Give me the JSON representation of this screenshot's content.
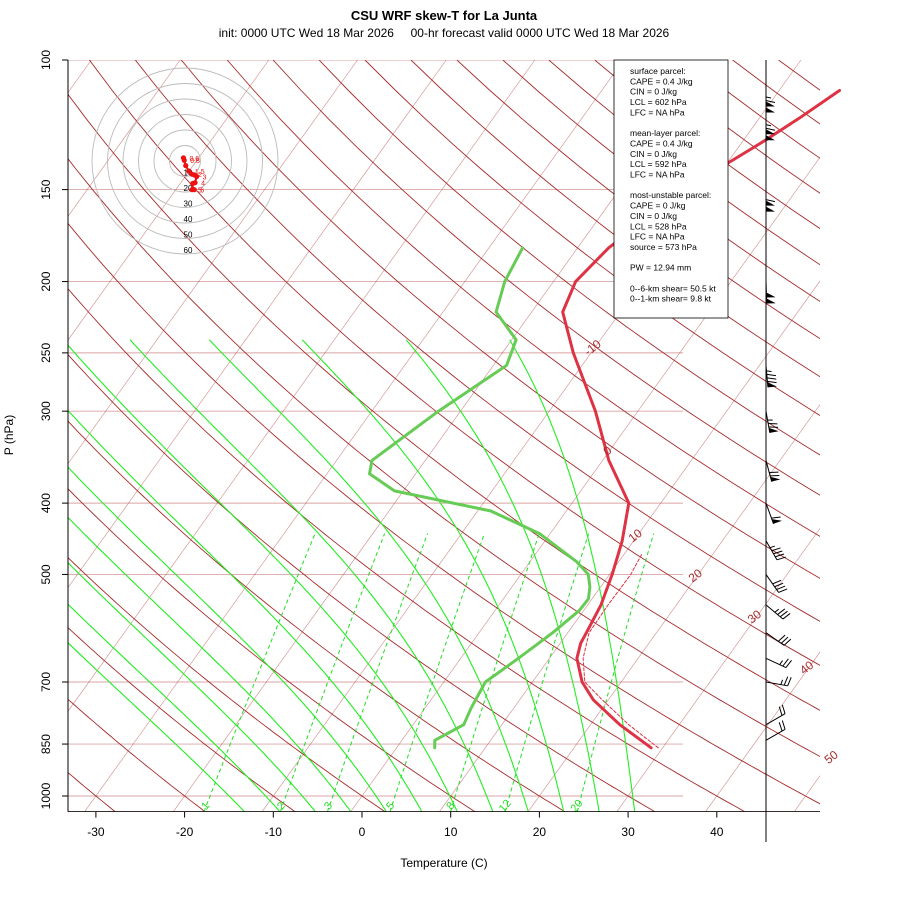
{
  "colors": {
    "isotherm": "#a62b2b",
    "dry_adiabat": "#a62b2b",
    "moist_adiabat": "#22ee22",
    "mixing_ratio": "#22dd22",
    "isobar": "#d9a4a4",
    "temperature": "#dd3344",
    "dewpoint": "#66cc55",
    "hodograph": "#ee1111",
    "wind_barb": "#000000"
  },
  "chart_data": {
    "type": "skew-t",
    "title": "CSU WRF skew-T for La Junta",
    "subtitle": "init: 0000 UTC Wed 18 Mar 2026     00-hr forecast valid 0000 UTC Wed 18 Mar 2026",
    "xlabel": "Temperature (C)",
    "ylabel": "P (hPa)",
    "xlim": [
      -33,
      52
    ],
    "ylim": [
      1050,
      100
    ],
    "log_pressure": true,
    "x_ticks": [
      -30,
      -20,
      -10,
      0,
      10,
      20,
      30,
      40
    ],
    "y_ticks": [
      1000,
      850,
      700,
      500,
      400,
      300,
      250,
      200,
      150,
      100
    ],
    "isotherm_labels": [
      -10,
      0,
      10,
      20,
      30,
      40,
      50
    ],
    "mixing_ratio_labels": [
      "1",
      "2",
      "3",
      "5",
      "8",
      "12",
      "20"
    ],
    "series": [
      {
        "key": "temperature",
        "points": [
          [
            860,
            28.7
          ],
          [
            800,
            23.3
          ],
          [
            740,
            18.3
          ],
          [
            700,
            15.6
          ],
          [
            650,
            13.1
          ],
          [
            620,
            12.3
          ],
          [
            600,
            12.1
          ],
          [
            550,
            11.5
          ],
          [
            500,
            10.3
          ],
          [
            450,
            8.7
          ],
          [
            400,
            6.4
          ],
          [
            350,
            0.7
          ],
          [
            300,
            -4.8
          ],
          [
            250,
            -12
          ],
          [
            220,
            -16.5
          ],
          [
            200,
            -17.5
          ],
          [
            180,
            -16.5
          ],
          [
            160,
            -14
          ],
          [
            150,
            -12.3
          ],
          [
            140,
            -10.4
          ],
          [
            130,
            -7.9
          ],
          [
            120,
            -5.5
          ],
          [
            110,
            -3.2
          ]
        ]
      },
      {
        "key": "parcel",
        "points": [
          [
            860,
            29.5
          ],
          [
            800,
            24.3
          ],
          [
            740,
            19.3
          ],
          [
            700,
            15.9
          ],
          [
            650,
            13.8
          ],
          [
            600,
            12.4
          ],
          [
            550,
            12.3
          ],
          [
            500,
            12.4
          ],
          [
            470,
            12.0
          ]
        ]
      },
      {
        "key": "dewpoint",
        "points": [
          [
            860,
            4.3
          ],
          [
            840,
            3.7
          ],
          [
            800,
            5.7
          ],
          [
            760,
            5.2
          ],
          [
            700,
            4.7
          ],
          [
            650,
            6.5
          ],
          [
            600,
            8.3
          ],
          [
            560,
            9.5
          ],
          [
            540,
            9.6
          ],
          [
            520,
            8.8
          ],
          [
            500,
            7.6
          ],
          [
            480,
            5.2
          ],
          [
            440,
            -1.2
          ],
          [
            410,
            -8.5
          ],
          [
            385,
            -21
          ],
          [
            365,
            -25.2
          ],
          [
            350,
            -26
          ],
          [
            300,
            -22.5
          ],
          [
            260,
            -18.5
          ],
          [
            240,
            -19.5
          ],
          [
            220,
            -24
          ],
          [
            200,
            -25.5
          ],
          [
            180,
            -26.2
          ]
        ]
      }
    ],
    "hodograph": {
      "ring_labels": [
        "10",
        "20",
        "30",
        "40",
        "50",
        "60"
      ],
      "ring_step": 10,
      "points": [
        [
          -1,
          2,
          "0.6"
        ],
        [
          -0.5,
          0.5,
          "0.8"
        ],
        [
          0.5,
          -3,
          ""
        ],
        [
          2.5,
          -6.5,
          "1.5"
        ],
        [
          4.5,
          -8.5,
          "2"
        ],
        [
          6,
          -9,
          ""
        ],
        [
          7.5,
          -10,
          "3"
        ],
        [
          6.5,
          -14,
          "4"
        ],
        [
          5,
          -14.5,
          ""
        ],
        [
          4.5,
          -18.5,
          "5"
        ],
        [
          6,
          -18.5,
          "6"
        ]
      ]
    },
    "wind_barbs": [
      [
        840,
        20,
        60
      ],
      [
        800,
        20,
        60
      ],
      [
        700,
        25,
        100
      ],
      [
        650,
        25,
        115
      ],
      [
        600,
        30,
        125
      ],
      [
        550,
        35,
        130
      ],
      [
        500,
        40,
        145
      ],
      [
        450,
        45,
        150
      ],
      [
        400,
        60,
        160
      ],
      [
        350,
        70,
        165
      ],
      [
        300,
        75,
        170
      ],
      [
        260,
        85,
        175
      ],
      [
        200,
        100,
        178
      ],
      [
        150,
        110,
        180
      ],
      [
        120,
        115,
        180
      ],
      [
        110,
        115,
        180
      ]
    ]
  },
  "indices": {
    "lines": [
      "surface parcel:",
      "CAPE = 0.4 J/kg",
      "CIN = 0 J/kg",
      "LCL = 602 hPa",
      "LFC = NA hPa",
      "",
      "mean-layer parcel:",
      "CAPE = 0.4 J/kg",
      "CIN = 0 J/kg",
      "LCL = 592 hPa",
      "LFC = NA hPa",
      "",
      "most-unstable parcel:",
      "CAPE = 0 J/kg",
      "CIN = 0 J/kg",
      "LCL = 528 hPa",
      "LFC = NA hPa",
      "source = 573 hPa",
      "",
      "PW =  12.94 mm",
      "",
      "0--6-km shear= 50.5 kt",
      "0--1-km shear= 9.8 kt"
    ]
  }
}
